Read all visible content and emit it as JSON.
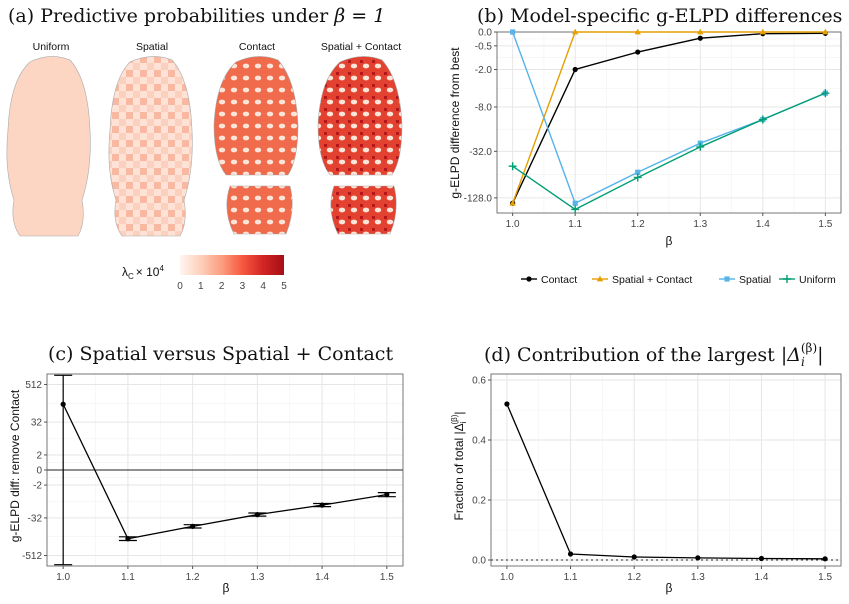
{
  "colors": {
    "contact": "#000000",
    "spatial_contact": "#E69F00",
    "spatial": "#56B4E9",
    "uniform": "#009E73",
    "map_low": "#fff5f0",
    "map_high": "#a50f15"
  },
  "panel_a": {
    "title": "(a) Predictive probabilities under",
    "title_math": "β = 1",
    "maps": [
      "Uniform",
      "Spatial",
      "Contact",
      "Spatial + Contact"
    ],
    "colorbar_label": "λ",
    "colorbar_sub": "C",
    "colorbar_mult": "× 10",
    "colorbar_exp": "4",
    "colorbar_ticks": [
      "0",
      "1",
      "2",
      "3",
      "4",
      "5"
    ]
  },
  "chart_data": [
    {
      "id": "b",
      "type": "line",
      "title": "(b) Model-specific g-ELPD differences",
      "xlabel": "β",
      "ylabel": "g-ELPD difference from best",
      "x": [
        1.0,
        1.1,
        1.2,
        1.3,
        1.4,
        1.5
      ],
      "x_tick_labels": [
        "1.0",
        "1.1",
        "1.2",
        "1.3",
        "1.4",
        "1.5"
      ],
      "y_scale": "signed-log2",
      "y_tick_values": [
        0,
        -0.5,
        -2,
        -8,
        -32,
        -128
      ],
      "y_tick_labels": [
        "0.0",
        "-0.5",
        "-2.0",
        "-8.0",
        "-32.0",
        "-128.0"
      ],
      "ylim": [
        -200,
        0
      ],
      "legend_position": "bottom",
      "grid": true,
      "series": [
        {
          "name": "Contact",
          "key": "contact",
          "marker": "circle",
          "values": [
            -150,
            -2,
            -0.8,
            -0.2,
            -0.05,
            -0.04
          ]
        },
        {
          "name": "Spatial + Contact",
          "key": "spatial_contact",
          "marker": "triangle",
          "values": [
            -150,
            0,
            0,
            0,
            0,
            0
          ]
        },
        {
          "name": "Spatial",
          "key": "spatial",
          "marker": "square",
          "values": [
            0,
            -150,
            -60,
            -25,
            -12,
            -5
          ]
        },
        {
          "name": "Uniform",
          "key": "uniform",
          "marker": "plus",
          "values": [
            -50,
            -180,
            -70,
            -28,
            -12,
            -5
          ]
        }
      ]
    },
    {
      "id": "c",
      "type": "line",
      "title": "(c) Spatial versus Spatial + Contact",
      "xlabel": "β",
      "ylabel": "g-ELPD diff: remove Contact",
      "x": [
        1.0,
        1.1,
        1.2,
        1.3,
        1.4,
        1.5
      ],
      "x_tick_labels": [
        "1.0",
        "1.1",
        "1.2",
        "1.3",
        "1.4",
        "1.5"
      ],
      "y_scale": "signed-log2",
      "y_tick_values": [
        512,
        32,
        2,
        0,
        -2,
        -32,
        -512
      ],
      "y_tick_labels": [
        "512",
        "32",
        "2",
        "0",
        "-2",
        "-32",
        "-512"
      ],
      "ylim": [
        -1100,
        1100
      ],
      "grid": true,
      "hline": 0,
      "values": [
        120,
        -150,
        -60,
        -25,
        -12,
        -5
      ],
      "error_bars": [
        {
          "lo": -1000,
          "hi": 1000
        },
        {
          "lo": -170,
          "hi": -130
        },
        {
          "lo": -68,
          "hi": -53
        },
        {
          "lo": -28,
          "hi": -22
        },
        {
          "lo": -13.5,
          "hi": -10.5
        },
        {
          "lo": -6,
          "hi": -4.2
        }
      ]
    },
    {
      "id": "d",
      "type": "line",
      "title": "(d) Contribution of the largest",
      "title_math": "|Δ",
      "title_math_sub": "i",
      "title_math_sup": "(β)",
      "title_math_end": "|",
      "xlabel": "β",
      "ylabel": "Fraction of total",
      "ylabel_math": "|Δ",
      "ylabel_math_sub": "i",
      "ylabel_math_sup": "(β)",
      "ylabel_math_end": "|",
      "x": [
        1.0,
        1.1,
        1.2,
        1.3,
        1.4,
        1.5
      ],
      "x_tick_labels": [
        "1.0",
        "1.1",
        "1.2",
        "1.3",
        "1.4",
        "1.5"
      ],
      "y_tick_values": [
        0,
        0.2,
        0.4,
        0.6
      ],
      "y_tick_labels": [
        "0.0",
        "0.2",
        "0.4",
        "0.6"
      ],
      "ylim": [
        -0.02,
        0.62
      ],
      "grid": true,
      "hline": 0,
      "values": [
        0.52,
        0.02,
        0.01,
        0.007,
        0.005,
        0.004
      ]
    }
  ]
}
